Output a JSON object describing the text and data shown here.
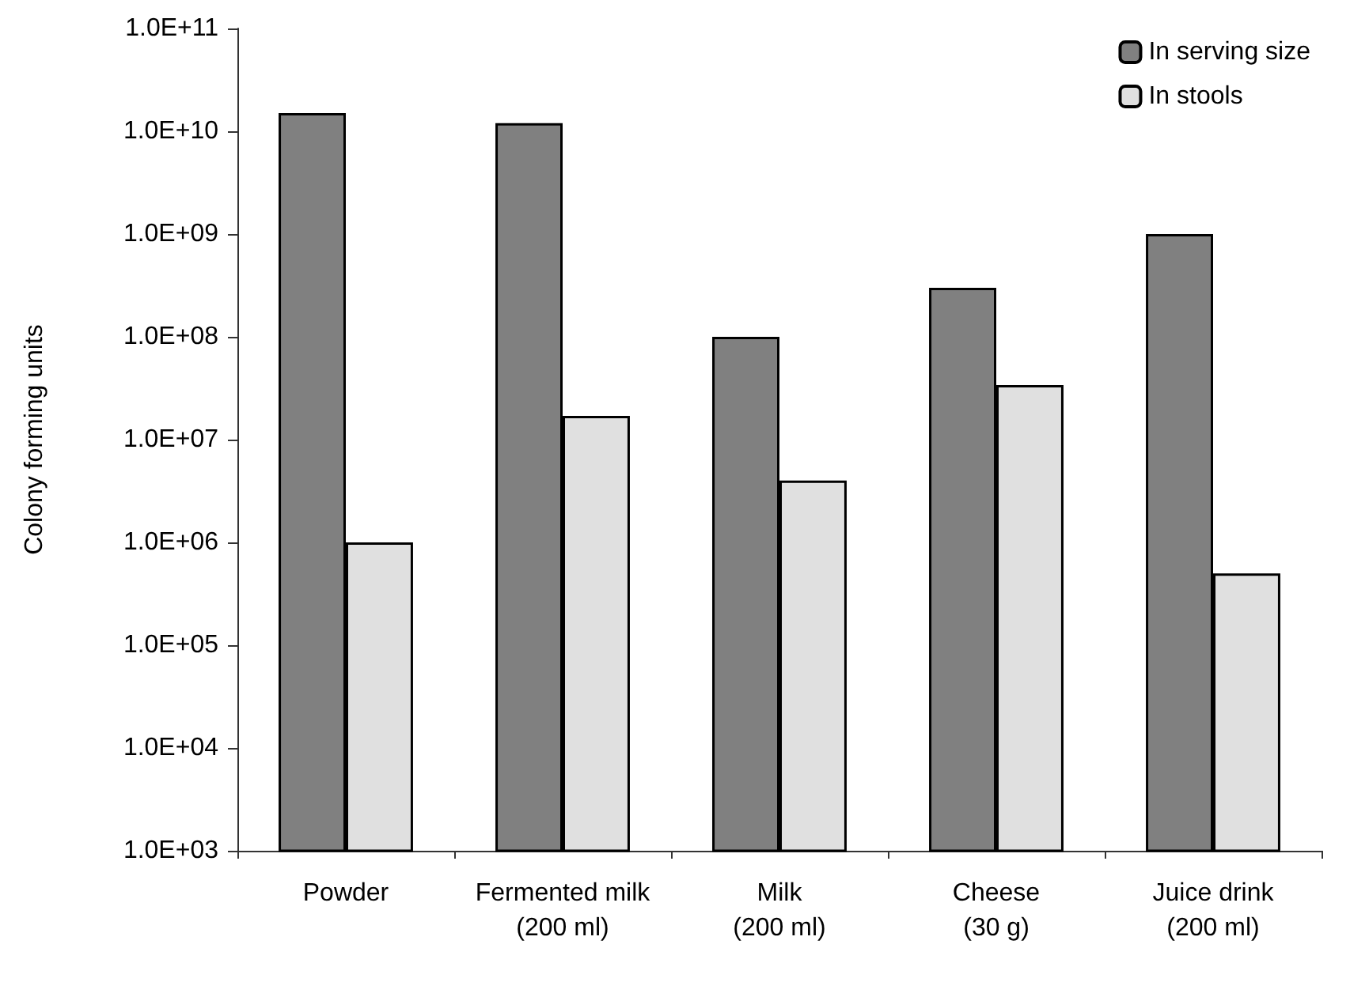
{
  "chart_data": {
    "type": "bar",
    "ylabel": "Colony forming units",
    "categories": [
      "Powder",
      "Fermented milk\n(200 ml)",
      "Milk\n(200 ml)",
      "Cheese\n(30 g)",
      "Juice drink\n(200 ml)"
    ],
    "series": [
      {
        "name": "In serving size",
        "color": "#808080",
        "values": [
          15000000000.0,
          12000000000.0,
          100000000.0,
          300000000.0,
          1000000000.0
        ]
      },
      {
        "name": "In stools",
        "color": "#e0e0e0",
        "values": [
          1000000.0,
          17000000.0,
          4000000.0,
          34000000.0,
          500000.0
        ]
      }
    ],
    "log": "y",
    "ylim": [
      1000.0,
      100000000000.0
    ],
    "yticks": [
      {
        "value": 1000.0,
        "label": "1.0E+03"
      },
      {
        "value": 10000.0,
        "label": "1.0E+04"
      },
      {
        "value": 100000.0,
        "label": "1.0E+05"
      },
      {
        "value": 1000000.0,
        "label": "1.0E+06"
      },
      {
        "value": 10000000.0,
        "label": "1.0E+07"
      },
      {
        "value": 100000000.0,
        "label": "1.0E+08"
      },
      {
        "value": 1000000000.0,
        "label": "1.0E+09"
      },
      {
        "value": 10000000000.0,
        "label": "1.0E+10"
      },
      {
        "value": 100000000000.0,
        "label": "1.0E+11"
      }
    ],
    "grid": false,
    "legend": "top right"
  }
}
